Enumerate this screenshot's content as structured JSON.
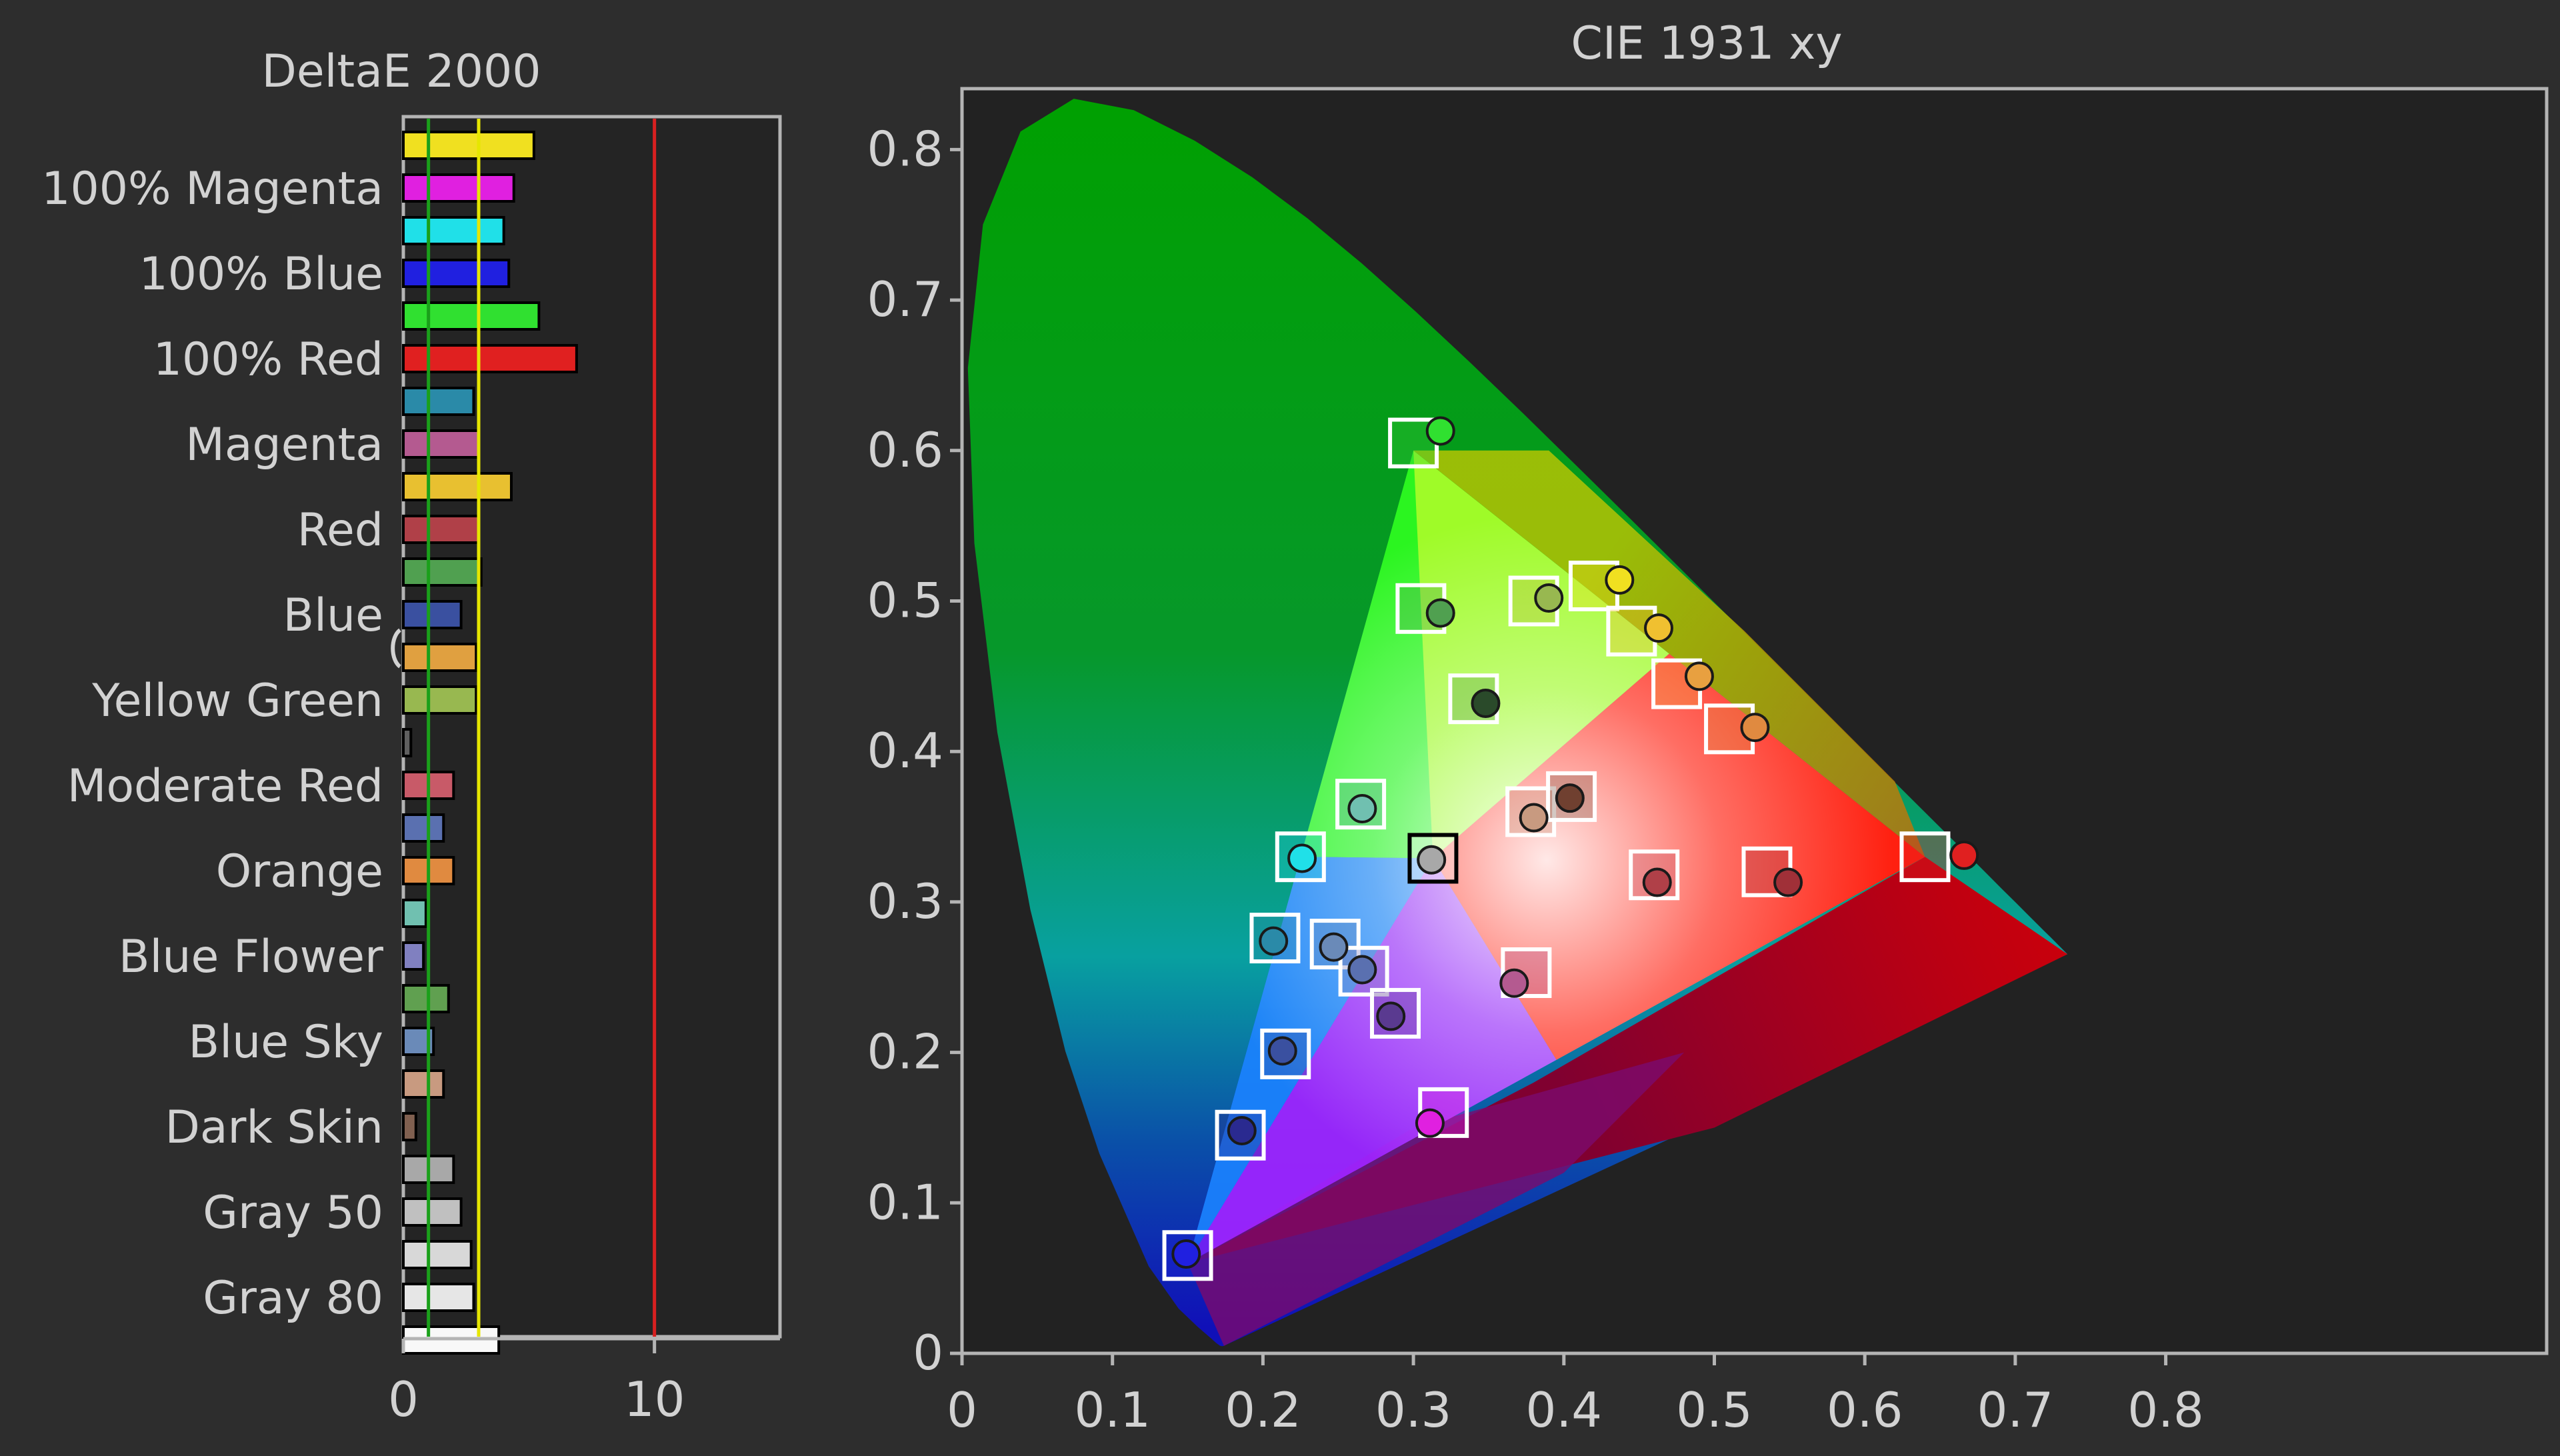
{
  "colors": {
    "background": "#2d2d2d",
    "plot_background": "#222222",
    "axis_text": "#d2d2d2",
    "frame": "#b4b4b4",
    "threshold_green": "#1aa01a",
    "threshold_yellow": "#e6e600",
    "threshold_red": "#d82020",
    "target_square": "#ffffff",
    "white_point_square": "#000000"
  },
  "chart_data": [
    {
      "type": "bar",
      "orientation": "horizontal",
      "title": "DeltaE 2000",
      "xlim": [
        0,
        15
      ],
      "xticks": [
        "0",
        "10"
      ],
      "xtick_values": [
        0,
        10
      ],
      "thresholds": [
        {
          "value": 1,
          "color": "#1aa01a"
        },
        {
          "value": 3,
          "color": "#e6e600"
        },
        {
          "value": 10,
          "color": "#d82020"
        }
      ],
      "grid": false,
      "legend": "none",
      "bars": [
        {
          "label": "",
          "value": 5.2,
          "color": "#f0e020"
        },
        {
          "label": "100% Magenta",
          "value": 4.4,
          "color": "#e020e0"
        },
        {
          "label": "",
          "value": 4.0,
          "color": "#20e0e8"
        },
        {
          "label": "100% Blue",
          "value": 4.2,
          "color": "#2020e0"
        },
        {
          "label": "",
          "value": 5.4,
          "color": "#30e030"
        },
        {
          "label": "100% Red",
          "value": 6.9,
          "color": "#e02020"
        },
        {
          "label": "",
          "value": 2.8,
          "color": "#2a8aa8"
        },
        {
          "label": "Magenta",
          "value": 3.0,
          "color": "#b45a90"
        },
        {
          "label": "",
          "value": 4.3,
          "color": "#e8c030"
        },
        {
          "label": "Red",
          "value": 3.0,
          "color": "#b04048"
        },
        {
          "label": "",
          "value": 3.1,
          "color": "#50a050"
        },
        {
          "label": "Blue",
          "value": 2.3,
          "color": "#3a50a0"
        },
        {
          "label": "",
          "value": 2.9,
          "color": "#e0a040"
        },
        {
          "label": "Yellow Green",
          "value": 2.9,
          "color": "#98b850"
        },
        {
          "label": "",
          "value": 0.3,
          "color": "#606060"
        },
        {
          "label": "Moderate Red",
          "value": 2.0,
          "color": "#c85a68"
        },
        {
          "label": "",
          "value": 1.6,
          "color": "#5a70b0"
        },
        {
          "label": "Orange",
          "value": 2.0,
          "color": "#e08a40"
        },
        {
          "label": "",
          "value": 0.9,
          "color": "#70c0b0"
        },
        {
          "label": "Blue Flower",
          "value": 0.8,
          "color": "#8080c0"
        },
        {
          "label": "",
          "value": 1.8,
          "color": "#60a050"
        },
        {
          "label": "Blue Sky",
          "value": 1.2,
          "color": "#6a8ab8"
        },
        {
          "label": "",
          "value": 1.6,
          "color": "#c89a80"
        },
        {
          "label": "Dark Skin",
          "value": 0.5,
          "color": "#806050"
        },
        {
          "label": "",
          "value": 2.0,
          "color": "#a8a8a8"
        },
        {
          "label": "Gray 50",
          "value": 2.3,
          "color": "#c0c0c0"
        },
        {
          "label": "",
          "value": 2.7,
          "color": "#d8d8d8"
        },
        {
          "label": "Gray 80",
          "value": 2.8,
          "color": "#e6e6e6"
        },
        {
          "label": "",
          "value": 3.8,
          "color": "#f8f8f8"
        }
      ]
    },
    {
      "type": "scatter",
      "title": "CIE 1931 xy",
      "xlabel": "",
      "ylabel": "",
      "xlim": [
        0,
        0.85
      ],
      "ylim": [
        0,
        0.85
      ],
      "xticks": [
        "0",
        "0.1",
        "0.2",
        "0.3",
        "0.4",
        "0.5",
        "0.6",
        "0.7",
        "0.8"
      ],
      "yticks": [
        "0",
        "0.1",
        "0.2",
        "0.3",
        "0.4",
        "0.5",
        "0.6",
        "0.7",
        "0.8"
      ],
      "grid": false,
      "legend": "none",
      "gamut_triangle": [
        [
          0.64,
          0.33
        ],
        [
          0.3,
          0.6
        ],
        [
          0.15,
          0.06
        ]
      ],
      "targets": [
        {
          "x": 0.3,
          "y": 0.605,
          "color": "#3ad03a"
        },
        {
          "x": 0.305,
          "y": 0.495,
          "color": "#4aa84a"
        },
        {
          "x": 0.38,
          "y": 0.5,
          "color": "#b8c040"
        },
        {
          "x": 0.42,
          "y": 0.51,
          "color": "#f0e020"
        },
        {
          "x": 0.445,
          "y": 0.48,
          "color": "#f0c030"
        },
        {
          "x": 0.475,
          "y": 0.445,
          "color": "#f0a040"
        },
        {
          "x": 0.51,
          "y": 0.415,
          "color": "#e08a40"
        },
        {
          "x": 0.34,
          "y": 0.435,
          "color": "#58a048"
        },
        {
          "x": 0.265,
          "y": 0.365,
          "color": "#60b0a0"
        },
        {
          "x": 0.225,
          "y": 0.33,
          "color": "#20d0e0"
        },
        {
          "x": 0.313,
          "y": 0.329,
          "color": "#ffffff",
          "white_point": true
        },
        {
          "x": 0.378,
          "y": 0.36,
          "color": "#c89a80"
        },
        {
          "x": 0.405,
          "y": 0.37,
          "color": "#806050"
        },
        {
          "x": 0.46,
          "y": 0.318,
          "color": "#c85a68"
        },
        {
          "x": 0.535,
          "y": 0.32,
          "color": "#b04048"
        },
        {
          "x": 0.64,
          "y": 0.33,
          "color": "#e02020"
        },
        {
          "x": 0.208,
          "y": 0.276,
          "color": "#2a8aa8"
        },
        {
          "x": 0.248,
          "y": 0.272,
          "color": "#6a8ab8"
        },
        {
          "x": 0.267,
          "y": 0.254,
          "color": "#8080c0"
        },
        {
          "x": 0.288,
          "y": 0.226,
          "color": "#5a3a90"
        },
        {
          "x": 0.215,
          "y": 0.199,
          "color": "#3a50a0"
        },
        {
          "x": 0.185,
          "y": 0.145,
          "color": "#2a2a90"
        },
        {
          "x": 0.375,
          "y": 0.253,
          "color": "#b45a90"
        },
        {
          "x": 0.32,
          "y": 0.16,
          "color": "#e020e0"
        },
        {
          "x": 0.15,
          "y": 0.065,
          "color": "#2020e0"
        }
      ],
      "measured": [
        {
          "x": 0.318,
          "y": 0.613,
          "color": "#30e030"
        },
        {
          "x": 0.318,
          "y": 0.492,
          "color": "#50a050"
        },
        {
          "x": 0.39,
          "y": 0.502,
          "color": "#98b850"
        },
        {
          "x": 0.437,
          "y": 0.514,
          "color": "#f0e020"
        },
        {
          "x": 0.463,
          "y": 0.482,
          "color": "#f0c030"
        },
        {
          "x": 0.49,
          "y": 0.45,
          "color": "#e8a040"
        },
        {
          "x": 0.527,
          "y": 0.416,
          "color": "#e08a40"
        },
        {
          "x": 0.348,
          "y": 0.432,
          "color": "#2a4a2a"
        },
        {
          "x": 0.266,
          "y": 0.362,
          "color": "#70c0b0"
        },
        {
          "x": 0.226,
          "y": 0.329,
          "color": "#20e0e8"
        },
        {
          "x": 0.312,
          "y": 0.328,
          "color": "#a8a8a8"
        },
        {
          "x": 0.38,
          "y": 0.356,
          "color": "#c89a80"
        },
        {
          "x": 0.404,
          "y": 0.369,
          "color": "#704030"
        },
        {
          "x": 0.462,
          "y": 0.313,
          "color": "#b04048"
        },
        {
          "x": 0.549,
          "y": 0.313,
          "color": "#a03038"
        },
        {
          "x": 0.666,
          "y": 0.331,
          "color": "#e02020"
        },
        {
          "x": 0.207,
          "y": 0.274,
          "color": "#2a8aa8"
        },
        {
          "x": 0.247,
          "y": 0.27,
          "color": "#6a8ab8"
        },
        {
          "x": 0.266,
          "y": 0.255,
          "color": "#5a70b0"
        },
        {
          "x": 0.285,
          "y": 0.224,
          "color": "#5a3a90"
        },
        {
          "x": 0.213,
          "y": 0.201,
          "color": "#3a50a0"
        },
        {
          "x": 0.186,
          "y": 0.148,
          "color": "#2a2a90"
        },
        {
          "x": 0.367,
          "y": 0.246,
          "color": "#b45a90"
        },
        {
          "x": 0.311,
          "y": 0.153,
          "color": "#e020e0"
        },
        {
          "x": 0.149,
          "y": 0.066,
          "color": "#2020e0"
        }
      ]
    }
  ]
}
